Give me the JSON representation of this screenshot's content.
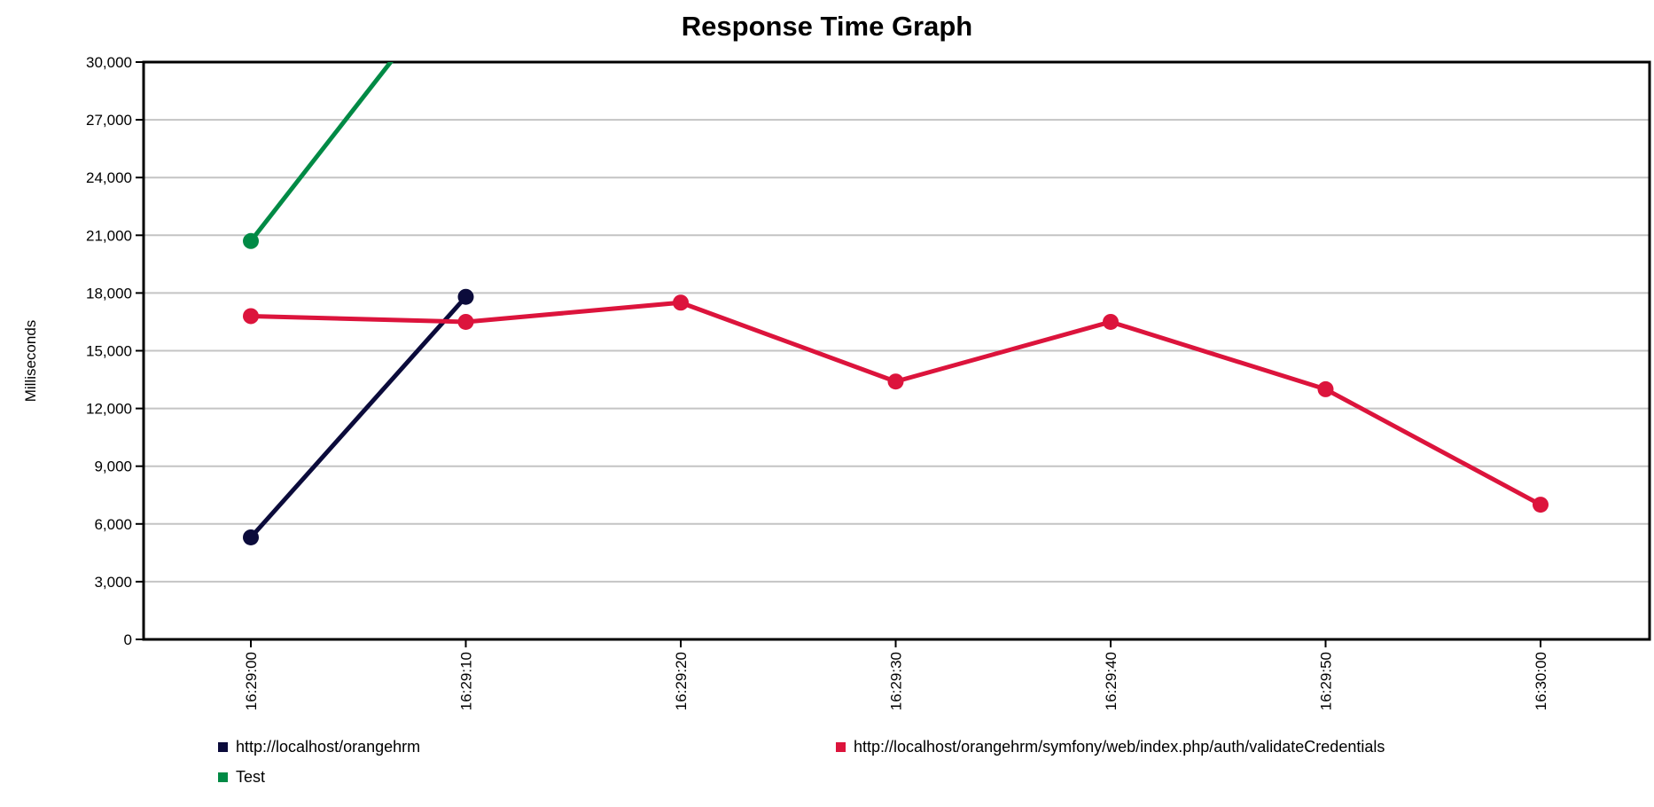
{
  "chart_data": {
    "type": "line",
    "title": "Response Time Graph",
    "ylabel": "Milliseconds",
    "xlabel": "",
    "ylim": [
      0,
      30000
    ],
    "yticks": [
      0,
      3000,
      6000,
      9000,
      12000,
      15000,
      18000,
      21000,
      24000,
      27000,
      30000
    ],
    "ytick_labels": [
      "0",
      "3,000",
      "6,000",
      "9,000",
      "12,000",
      "15,000",
      "18,000",
      "21,000",
      "24,000",
      "27,000",
      "30,000"
    ],
    "categories": [
      "16:29:00",
      "16:29:10",
      "16:29:20",
      "16:29:30",
      "16:29:40",
      "16:29:50",
      "16:30:00"
    ],
    "grid": true,
    "legend_position": "bottom",
    "series": [
      {
        "name": "http://localhost/orangehrm",
        "color": "#0b0b3b",
        "values": [
          5300,
          17800,
          null,
          null,
          null,
          null,
          null
        ]
      },
      {
        "name": "http://localhost/orangehrm/symfony/web/index.php/auth/validateCredentials",
        "color": "#dc143c",
        "values": [
          16800,
          16500,
          17500,
          13400,
          16500,
          13000,
          7000
        ]
      },
      {
        "name": "Test",
        "color": "#008a45",
        "values": [
          20700,
          35000,
          null,
          null,
          null,
          null,
          null
        ]
      }
    ]
  }
}
